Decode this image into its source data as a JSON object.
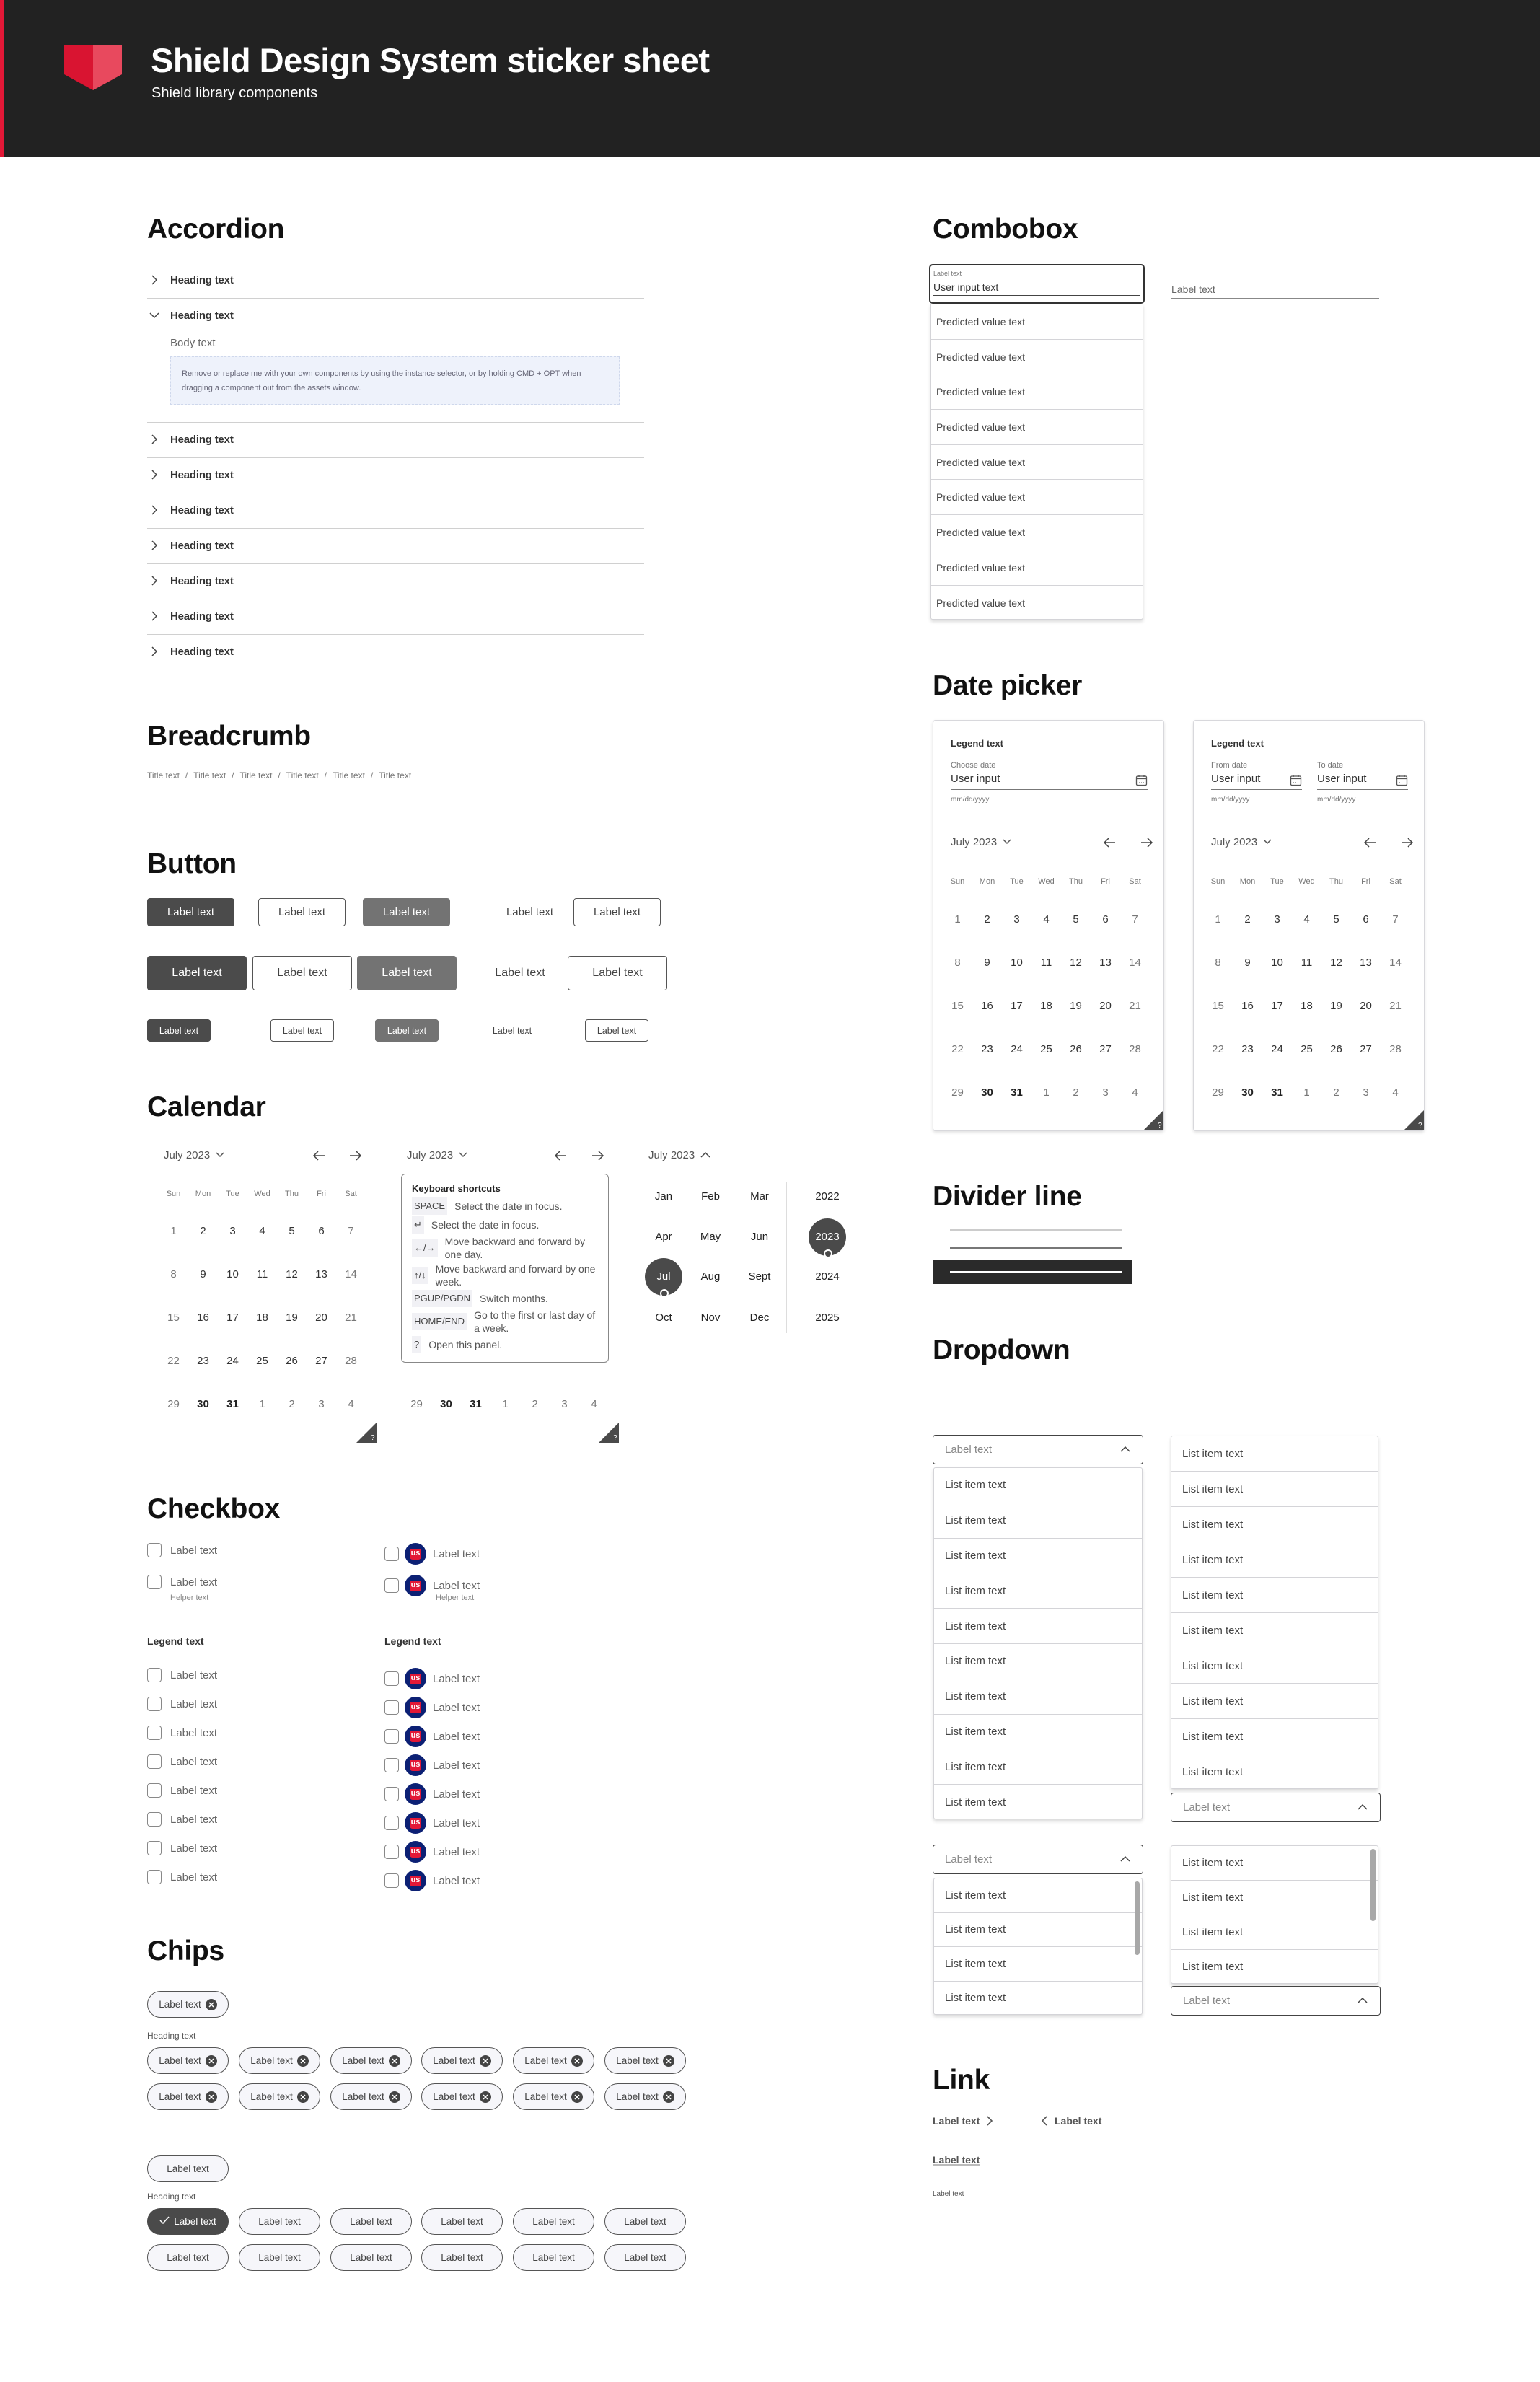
{
  "header": {
    "title": "Shield Design System sticker sheet",
    "subtitle": "Shield library components",
    "accent": "#e31837",
    "background": "#222222"
  },
  "accordion": {
    "title": "Accordion",
    "items": [
      {
        "heading": "Heading text",
        "expanded": false
      },
      {
        "heading": "Heading text",
        "expanded": true,
        "body": "Body text",
        "note": "Remove or replace me with your own components by using the instance selector, or by holding CMD + OPT when dragging a component out from the assets window."
      },
      {
        "heading": "Heading text",
        "expanded": false
      },
      {
        "heading": "Heading text",
        "expanded": false
      },
      {
        "heading": "Heading text",
        "expanded": false
      },
      {
        "heading": "Heading text",
        "expanded": false
      },
      {
        "heading": "Heading text",
        "expanded": false
      },
      {
        "heading": "Heading text",
        "expanded": false
      },
      {
        "heading": "Heading text",
        "expanded": false
      }
    ]
  },
  "breadcrumb": {
    "title": "Breadcrumb",
    "separator": "/",
    "items": [
      "Title text",
      "Title text",
      "Title text",
      "Title text",
      "Title text",
      "Title text"
    ]
  },
  "button": {
    "title": "Button",
    "variants": [
      "primary",
      "secondary",
      "disabled",
      "text",
      "outline"
    ],
    "rows": [
      [
        "Label text",
        "Label text",
        "Label text",
        "Label text",
        "Label text"
      ],
      [
        "Label text",
        "Label text",
        "Label text",
        "Label text",
        "Label text"
      ],
      [
        "Label text",
        "Label text",
        "Label text",
        "Label text",
        "Label text"
      ]
    ]
  },
  "calendar": {
    "title": "Calendar",
    "month": "July 2023",
    "help": "?",
    "weekdays": [
      "Sun",
      "Mon",
      "Tue",
      "Wed",
      "Thu",
      "Fri",
      "Sat"
    ],
    "weeks": [
      [
        "1",
        "2",
        "3",
        "4",
        "5",
        "6",
        "7"
      ],
      [
        "8",
        "9",
        "10",
        "11",
        "12",
        "13",
        "14"
      ],
      [
        "15",
        "16",
        "17",
        "18",
        "19",
        "20",
        "21"
      ],
      [
        "22",
        "23",
        "24",
        "25",
        "26",
        "27",
        "28"
      ],
      [
        "29",
        "30",
        "31",
        "1",
        "2",
        "3",
        "4"
      ]
    ],
    "shortcuts": {
      "title": "Keyboard shortcuts",
      "items": [
        {
          "key": "SPACE",
          "desc": "Select the date in focus."
        },
        {
          "key": "↵",
          "desc": "Select the date in focus."
        },
        {
          "key": "←/→",
          "desc": "Move backward and forward by one day."
        },
        {
          "key": "↑/↓",
          "desc": "Move backward and forward by one week."
        },
        {
          "key": "PGUP/PGDN",
          "desc": "Switch months."
        },
        {
          "key": "HOME/END",
          "desc": "Go to the first or last day of a week."
        },
        {
          "key": "?",
          "desc": "Open this panel."
        }
      ]
    },
    "months": [
      "Jan",
      "Feb",
      "Mar",
      "Apr",
      "May",
      "Jun",
      "Jul",
      "Aug",
      "Sept",
      "Oct",
      "Nov",
      "Dec"
    ],
    "years": [
      "2022",
      "2023",
      "2024",
      "2025"
    ],
    "selected_month": "Jul",
    "selected_year": "2023"
  },
  "checkbox": {
    "title": "Checkbox",
    "avatar_text": "us",
    "avatar_color": "#0c2074",
    "singles": [
      {
        "label": "Label text"
      },
      {
        "label": "Label text",
        "helper": "Helper text"
      }
    ],
    "legend": "Legend text",
    "group": [
      "Label text",
      "Label text",
      "Label text",
      "Label text",
      "Label text",
      "Label text",
      "Label text",
      "Label text"
    ]
  },
  "chips": {
    "title": "Chips",
    "dismissible": {
      "single": "Label text",
      "heading": "Heading text",
      "rows": [
        [
          "Label text",
          "Label text",
          "Label text",
          "Label text",
          "Label text",
          "Label text"
        ],
        [
          "Label text",
          "Label text",
          "Label text",
          "Label text",
          "Label text",
          "Label text"
        ]
      ]
    },
    "selectable": {
      "single": "Label text",
      "heading": "Heading text",
      "selected_index": 0,
      "rows": [
        [
          "Label text",
          "Label text",
          "Label text",
          "Label text",
          "Label text",
          "Label text"
        ],
        [
          "Label text",
          "Label text",
          "Label text",
          "Label text",
          "Label text",
          "Label text"
        ]
      ]
    }
  },
  "combobox": {
    "title": "Combobox",
    "label": "Label text",
    "value": "User input text",
    "options": [
      "Predicted value text",
      "Predicted value text",
      "Predicted value text",
      "Predicted value text",
      "Predicted value text",
      "Predicted value text",
      "Predicted value text",
      "Predicted value text",
      "Predicted value text"
    ],
    "empty_label": "Label text"
  },
  "date_picker": {
    "title": "Date picker",
    "help": "?",
    "single": {
      "legend": "Legend text",
      "label": "Choose date",
      "value": "User input",
      "hint": "mm/dd/yyyy"
    },
    "range": {
      "legend": "Legend text",
      "from_label": "From date",
      "to_label": "To date",
      "from_value": "User input",
      "to_value": "User input",
      "hint": "mm/dd/yyyy"
    }
  },
  "divider": {
    "title": "Divider line"
  },
  "dropdown": {
    "title": "Dropdown",
    "placeholder": "Label text",
    "lists": [
      [
        "List item text",
        "List item text",
        "List item text",
        "List item text",
        "List item text",
        "List item text",
        "List item text",
        "List item text",
        "List item text",
        "List item text"
      ],
      [
        "List item text",
        "List item text",
        "List item text",
        "List item text",
        "List item text",
        "List item text",
        "List item text",
        "List item text",
        "List item text",
        "List item text"
      ],
      [
        "List item text",
        "List item text",
        "List item text",
        "List item text"
      ],
      [
        "List item text",
        "List item text",
        "List item text",
        "List item text"
      ]
    ]
  },
  "link": {
    "title": "Link",
    "forward": "Label text",
    "back": "Label text",
    "large": "Label text",
    "small": "Label text"
  }
}
